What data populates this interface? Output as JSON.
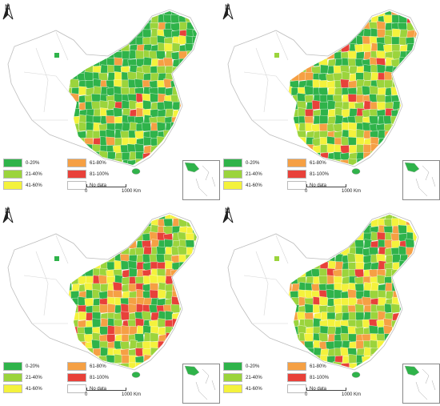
{
  "north_label": "N",
  "legend": [
    {
      "label": "0-20%",
      "color": "#2fb34a"
    },
    {
      "label": "21-40%",
      "color": "#9bd43c"
    },
    {
      "label": "41-60%",
      "color": "#f4f23c"
    },
    {
      "label": "61-80%",
      "color": "#f5a044"
    },
    {
      "label": "81-100%",
      "color": "#e8413a"
    },
    {
      "label": "No data",
      "color": "#ffffff"
    }
  ],
  "scale": {
    "start": "0",
    "end": "1000 Km"
  },
  "panels": [
    {},
    {},
    {},
    {}
  ]
}
